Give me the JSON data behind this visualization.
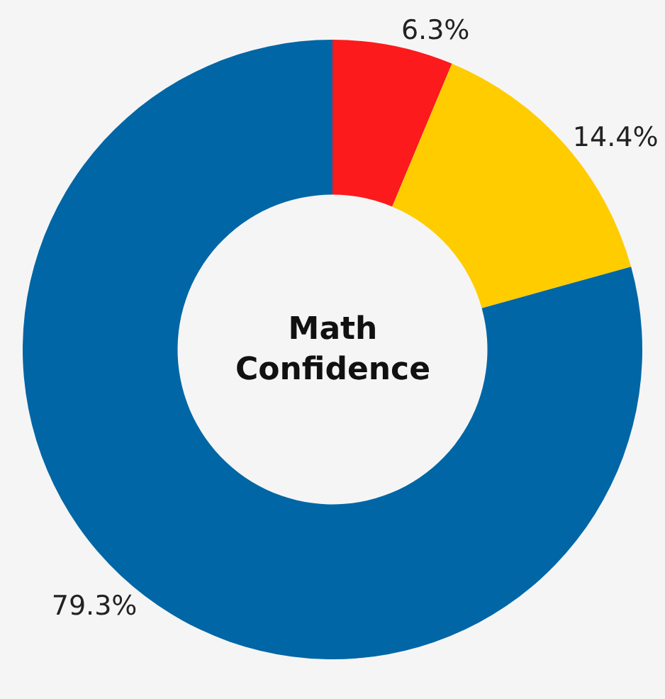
{
  "chart_data": {
    "type": "donut",
    "title": "Math Confidence",
    "categories": [
      null,
      null,
      null
    ],
    "values": [
      6.3,
      14.4,
      79.3
    ],
    "value_labels": [
      "6.3%",
      "14.4%",
      "79.3%"
    ],
    "colors": [
      "#fc1a1c",
      "#ffcc00",
      "#0066a5"
    ],
    "legend": false
  }
}
